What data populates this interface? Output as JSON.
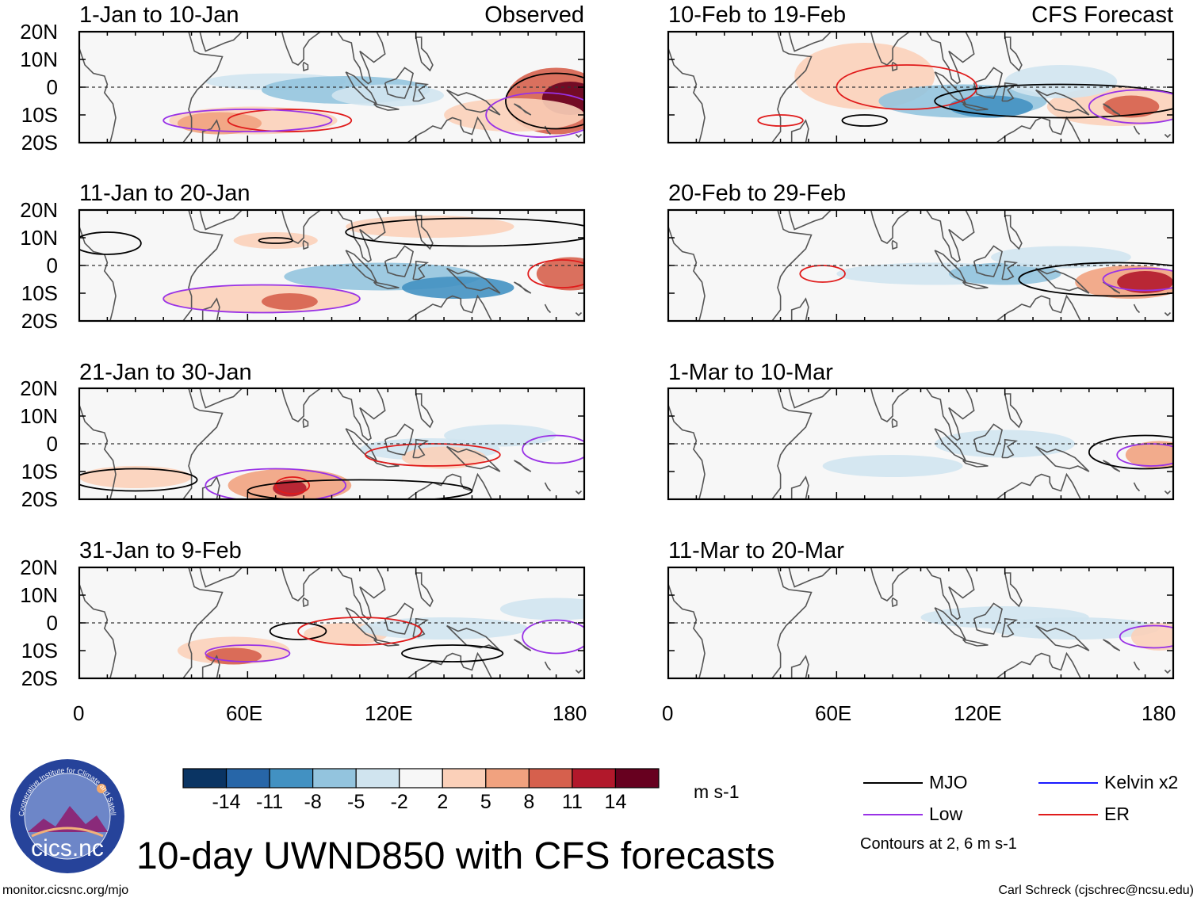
{
  "figure_title": "10-day UWND850 with CFS forecasts",
  "tags": {
    "observed": "Observed",
    "forecast": "CFS Forecast"
  },
  "panels": [
    {
      "title": "1-Jan to 10-Jan",
      "type": "observed"
    },
    {
      "title": "11-Jan to 20-Jan",
      "type": "observed"
    },
    {
      "title": "21-Jan to 30-Jan",
      "type": "observed"
    },
    {
      "title": "31-Jan to 9-Feb",
      "type": "observed"
    },
    {
      "title": "10-Feb to 19-Feb",
      "type": "forecast"
    },
    {
      "title": "20-Feb to 29-Feb",
      "type": "forecast"
    },
    {
      "title": "1-Mar to 10-Mar",
      "type": "forecast"
    },
    {
      "title": "11-Mar to 20-Mar",
      "type": "forecast"
    }
  ],
  "lat_labels": [
    "20N",
    "10N",
    "0",
    "10S",
    "20S"
  ],
  "lon_labels": [
    "0",
    "60E",
    "120E",
    "180"
  ],
  "colorbar": {
    "units": "m s-1",
    "ticks": [
      "-14",
      "-11",
      "-8",
      "-5",
      "-2",
      "2",
      "5",
      "8",
      "11",
      "14"
    ],
    "colors": [
      "#0a3463",
      "#2766a8",
      "#4291c2",
      "#93c4de",
      "#d0e4ef",
      "#f7f7f7",
      "#fbd0b9",
      "#f1a27f",
      "#d6604d",
      "#b2182b",
      "#67001f"
    ]
  },
  "legend": {
    "items": [
      {
        "label": "MJO",
        "color": "#000000"
      },
      {
        "label": "Low",
        "color": "#9932e6"
      },
      {
        "label": "Kelvin x2",
        "color": "#1a1aff"
      },
      {
        "label": "ER",
        "color": "#e01b1b"
      }
    ],
    "note": "Contours at 2, 6 m s-1"
  },
  "logo_text": "cics.nc",
  "logo_ring_text": "Cooperative Institute for Climate and Satellites",
  "footer": {
    "left": "monitor.cicsnc.org/mjo",
    "right": "Carl Schreck (cjschrec@ncsu.edu)"
  }
}
